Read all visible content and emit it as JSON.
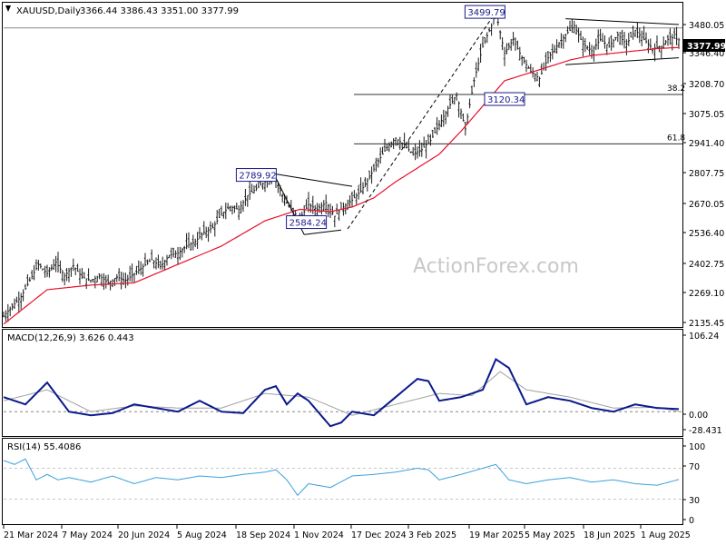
{
  "header": {
    "symbol": "XAUUSD,Daily",
    "ohlc": "3366.44 3386.43 3351.00 3377.99"
  },
  "watermark": "ActionForex.com",
  "colors": {
    "candle": "#1a1a1a",
    "ema": "#e8102a",
    "macd": "#0a1a8c",
    "signal": "#a0a0a0",
    "rsi": "#3aa0dc",
    "grid": "#c8c8c8",
    "box_border": "#1a1a8c"
  },
  "chart_data": [
    {
      "type": "candlestick",
      "name": "price",
      "y_ticks": [
        "3480.05",
        "3346.40",
        "3208.70",
        "3075.05",
        "2941.40",
        "2807.75",
        "2670.05",
        "2536.40",
        "2402.75",
        "2269.10",
        "2135.45"
      ],
      "ylim": [
        2135.45,
        3520
      ],
      "current_price_label": "3377.99",
      "current_price": 3377.99,
      "x_ticks": [
        "21 Mar 2024",
        "7 May 2024",
        "20 Jun 2024",
        "5 Aug 2024",
        "18 Sep 2024",
        "1 Nov 2024",
        "17 Dec 2024",
        "3 Feb 2025",
        "19 Mar 2025",
        "5 May 2025",
        "18 Jun 2025",
        "1 Aug 2025"
      ],
      "close_path": [
        [
          0,
          2175
        ],
        [
          8,
          2260
        ],
        [
          12,
          2330
        ],
        [
          16,
          2400
        ],
        [
          20,
          2360
        ],
        [
          24,
          2410
        ],
        [
          28,
          2350
        ],
        [
          32,
          2395
        ],
        [
          36,
          2345
        ],
        [
          40,
          2330
        ],
        [
          44,
          2350
        ],
        [
          48,
          2320
        ],
        [
          52,
          2345
        ],
        [
          56,
          2330
        ],
        [
          60,
          2360
        ],
        [
          64,
          2390
        ],
        [
          68,
          2420
        ],
        [
          72,
          2390
        ],
        [
          76,
          2440
        ],
        [
          80,
          2450
        ],
        [
          84,
          2480
        ],
        [
          88,
          2500
        ],
        [
          92,
          2540
        ],
        [
          96,
          2560
        ],
        [
          100,
          2620
        ],
        [
          104,
          2650
        ],
        [
          108,
          2640
        ],
        [
          112,
          2700
        ],
        [
          116,
          2730
        ],
        [
          120,
          2760
        ],
        [
          124,
          2789
        ],
        [
          128,
          2700
        ],
        [
          132,
          2640
        ],
        [
          136,
          2600
        ],
        [
          140,
          2660
        ],
        [
          144,
          2640
        ],
        [
          148,
          2670
        ],
        [
          152,
          2610
        ],
        [
          156,
          2650
        ],
        [
          160,
          2680
        ],
        [
          164,
          2720
        ],
        [
          168,
          2780
        ],
        [
          172,
          2850
        ],
        [
          176,
          2910
        ],
        [
          180,
          2950
        ],
        [
          184,
          2920
        ],
        [
          188,
          2880
        ],
        [
          192,
          2900
        ],
        [
          196,
          2940
        ],
        [
          200,
          3010
        ],
        [
          204,
          3080
        ],
        [
          208,
          3140
        ],
        [
          212,
          2990
        ],
        [
          216,
          3200
        ],
        [
          220,
          3350
        ],
        [
          224,
          3440
        ],
        [
          226,
          3499
        ],
        [
          230,
          3320
        ],
        [
          234,
          3380
        ],
        [
          238,
          3300
        ],
        [
          242,
          3240
        ],
        [
          246,
          3210
        ],
        [
          250,
          3300
        ],
        [
          254,
          3350
        ],
        [
          258,
          3400
        ],
        [
          262,
          3440
        ],
        [
          266,
          3360
        ],
        [
          270,
          3330
        ],
        [
          274,
          3380
        ],
        [
          278,
          3350
        ],
        [
          282,
          3400
        ],
        [
          286,
          3360
        ],
        [
          290,
          3420
        ],
        [
          294,
          3380
        ],
        [
          298,
          3340
        ],
        [
          302,
          3350
        ],
        [
          306,
          3390
        ],
        [
          310,
          3377.99
        ]
      ],
      "ema_path": [
        [
          0,
          2140
        ],
        [
          20,
          2290
        ],
        [
          40,
          2310
        ],
        [
          60,
          2320
        ],
        [
          80,
          2400
        ],
        [
          100,
          2480
        ],
        [
          120,
          2590
        ],
        [
          136,
          2640
        ],
        [
          150,
          2630
        ],
        [
          160,
          2650
        ],
        [
          170,
          2690
        ],
        [
          180,
          2760
        ],
        [
          190,
          2820
        ],
        [
          200,
          2880
        ],
        [
          210,
          2980
        ],
        [
          220,
          3090
        ],
        [
          230,
          3200
        ],
        [
          240,
          3230
        ],
        [
          250,
          3260
        ],
        [
          260,
          3290
        ],
        [
          270,
          3310
        ],
        [
          280,
          3320
        ],
        [
          290,
          3330
        ],
        [
          300,
          3340
        ],
        [
          310,
          3345
        ]
      ],
      "annotations": [
        {
          "text": "3499.79",
          "value": 3499.79
        },
        {
          "text": "3120.34",
          "value": 3120.34
        },
        {
          "text": "2789.92",
          "value": 2789.92
        },
        {
          "text": "2584.24",
          "value": 2584.24
        }
      ],
      "fib_levels": [
        {
          "label": "38.2",
          "value": 3140
        },
        {
          "label": "61.8",
          "value": 2925
        }
      ]
    },
    {
      "type": "line",
      "name": "MACD",
      "title": "MACD(12,26,9) 3.626 0.443",
      "y_ticks": [
        "106.24",
        "0.00",
        "-28.431"
      ],
      "ylim": [
        -28.431,
        106.24
      ],
      "zero_label": "0.00",
      "macd_path": [
        [
          0,
          20
        ],
        [
          10,
          10
        ],
        [
          20,
          40
        ],
        [
          30,
          0
        ],
        [
          40,
          -5
        ],
        [
          50,
          -2
        ],
        [
          60,
          10
        ],
        [
          70,
          5
        ],
        [
          80,
          0
        ],
        [
          90,
          15
        ],
        [
          100,
          0
        ],
        [
          110,
          -2
        ],
        [
          120,
          30
        ],
        [
          125,
          35
        ],
        [
          130,
          10
        ],
        [
          135,
          25
        ],
        [
          140,
          15
        ],
        [
          150,
          -20
        ],
        [
          155,
          -15
        ],
        [
          160,
          0
        ],
        [
          170,
          -5
        ],
        [
          180,
          20
        ],
        [
          190,
          45
        ],
        [
          195,
          42
        ],
        [
          200,
          15
        ],
        [
          210,
          20
        ],
        [
          220,
          30
        ],
        [
          226,
          72
        ],
        [
          232,
          60
        ],
        [
          240,
          10
        ],
        [
          250,
          20
        ],
        [
          260,
          15
        ],
        [
          270,
          5
        ],
        [
          280,
          0
        ],
        [
          290,
          10
        ],
        [
          300,
          5
        ],
        [
          310,
          3.6
        ]
      ],
      "signal_path": [
        [
          0,
          15
        ],
        [
          20,
          30
        ],
        [
          40,
          0
        ],
        [
          60,
          8
        ],
        [
          80,
          5
        ],
        [
          100,
          5
        ],
        [
          120,
          25
        ],
        [
          140,
          20
        ],
        [
          160,
          -5
        ],
        [
          180,
          10
        ],
        [
          200,
          25
        ],
        [
          215,
          22
        ],
        [
          228,
          55
        ],
        [
          240,
          30
        ],
        [
          260,
          20
        ],
        [
          280,
          5
        ],
        [
          300,
          6
        ],
        [
          310,
          0.4
        ]
      ]
    },
    {
      "type": "line",
      "name": "RSI",
      "title": "RSI(14) 55.4086",
      "y_ticks": [
        "100",
        "70",
        "30",
        "0"
      ],
      "ylim": [
        0,
        100
      ],
      "levels": [
        70,
        30
      ],
      "rsi_path": [
        [
          0,
          80
        ],
        [
          5,
          75
        ],
        [
          10,
          82
        ],
        [
          15,
          55
        ],
        [
          20,
          62
        ],
        [
          25,
          55
        ],
        [
          30,
          58
        ],
        [
          40,
          52
        ],
        [
          50,
          60
        ],
        [
          60,
          50
        ],
        [
          70,
          58
        ],
        [
          80,
          55
        ],
        [
          90,
          60
        ],
        [
          100,
          58
        ],
        [
          110,
          62
        ],
        [
          120,
          65
        ],
        [
          125,
          68
        ],
        [
          130,
          55
        ],
        [
          135,
          35
        ],
        [
          140,
          50
        ],
        [
          150,
          45
        ],
        [
          160,
          60
        ],
        [
          170,
          62
        ],
        [
          180,
          65
        ],
        [
          190,
          70
        ],
        [
          195,
          68
        ],
        [
          200,
          55
        ],
        [
          210,
          62
        ],
        [
          220,
          70
        ],
        [
          226,
          75
        ],
        [
          232,
          55
        ],
        [
          240,
          50
        ],
        [
          250,
          55
        ],
        [
          260,
          58
        ],
        [
          270,
          52
        ],
        [
          280,
          55
        ],
        [
          290,
          50
        ],
        [
          300,
          48
        ],
        [
          310,
          55.4
        ]
      ]
    }
  ]
}
